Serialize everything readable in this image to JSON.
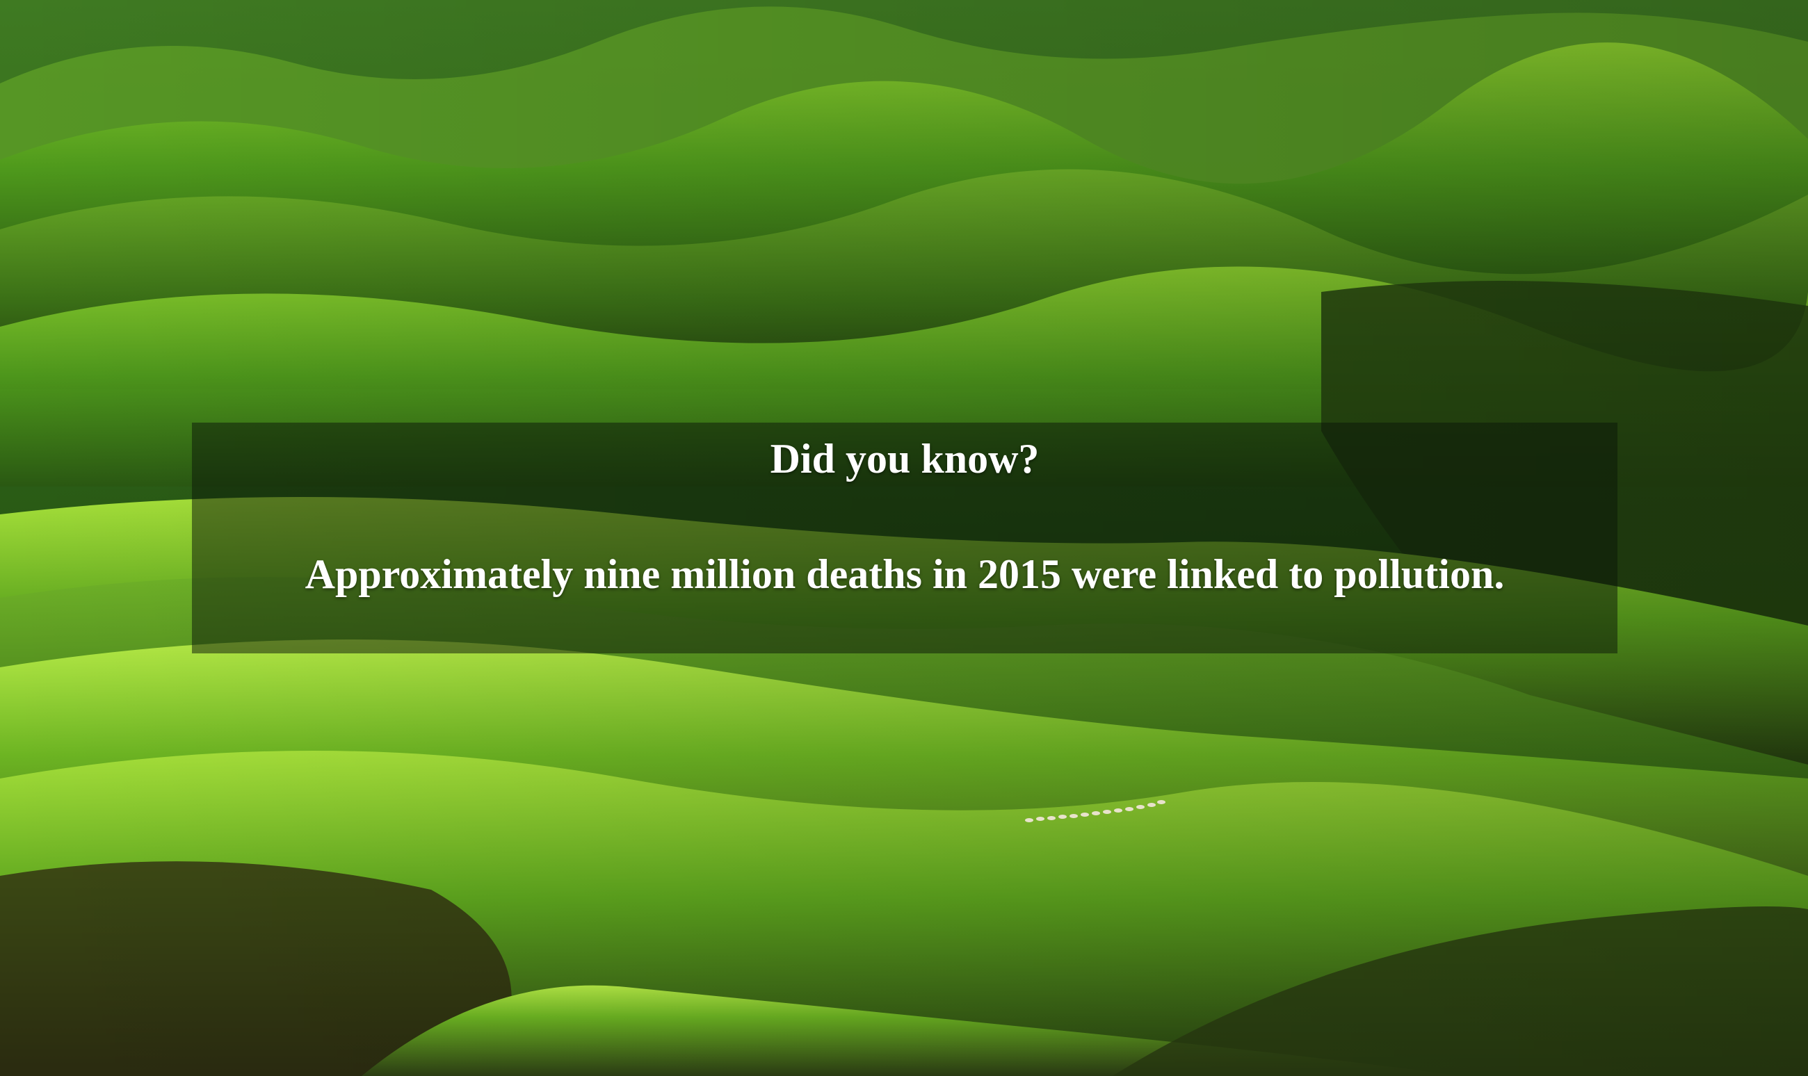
{
  "background": {
    "image_name": "green-rolling-hills-photo"
  },
  "fact_card": {
    "heading": "Did you know?",
    "fact": "Approximately nine million deaths in 2015 were linked to pollution."
  }
}
